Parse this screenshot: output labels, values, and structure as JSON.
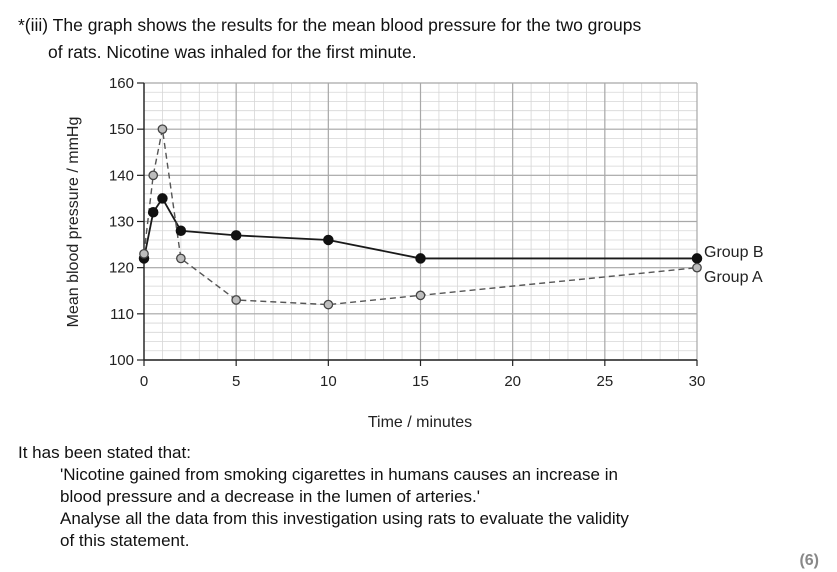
{
  "question": {
    "line1": "*(iii) The graph shows the results for the mean blood pressure for the two groups",
    "line2": "of rats. Nicotine was inhaled for the first minute."
  },
  "statement": {
    "line1": "It has been stated that:",
    "line2": "'Nicotine gained from smoking cigarettes in humans causes an increase in",
    "line3": "blood pressure and a decrease in the lumen of arteries.'",
    "line4": "Analyse all the data from this investigation using rats to evaluate the validity",
    "line5": "of this statement."
  },
  "marks": "(6)",
  "chart_data": {
    "type": "line",
    "xlabel": "Time / minutes",
    "ylabel": "Mean blood pressure / mmHg",
    "xlim": [
      0,
      30
    ],
    "ylim": [
      100,
      160
    ],
    "x_ticks": [
      0,
      5,
      10,
      15,
      20,
      25,
      30
    ],
    "y_ticks": [
      100,
      110,
      120,
      130,
      140,
      150,
      160
    ],
    "grid": true,
    "series": [
      {
        "name": "Group B",
        "style": "solid",
        "marker": "filled-circle",
        "color": "#1a1a1a",
        "points": [
          [
            0,
            122
          ],
          [
            0.5,
            132
          ],
          [
            1,
            135
          ],
          [
            2,
            128
          ],
          [
            5,
            127
          ],
          [
            10,
            126
          ],
          [
            15,
            122
          ],
          [
            30,
            122
          ]
        ]
      },
      {
        "name": "Group A",
        "style": "dashed",
        "marker": "open-circle",
        "color": "#555555",
        "points": [
          [
            0,
            123
          ],
          [
            0.5,
            140
          ],
          [
            1,
            150
          ],
          [
            2,
            122
          ],
          [
            5,
            113
          ],
          [
            10,
            112
          ],
          [
            15,
            114
          ],
          [
            30,
            120
          ]
        ]
      }
    ]
  }
}
